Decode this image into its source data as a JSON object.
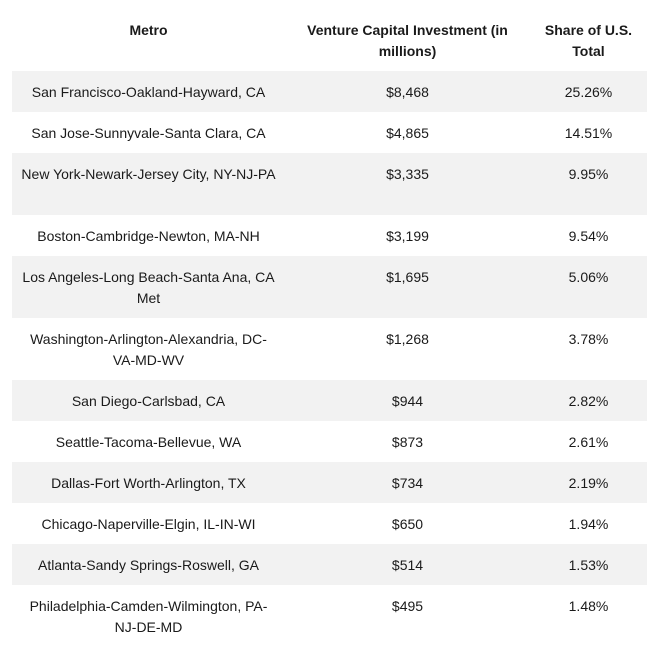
{
  "table": {
    "headers": {
      "metro": "Metro",
      "investment": "Venture Capital Investment (in millions)",
      "share": "Share of U.S. Total"
    },
    "rows": [
      {
        "metro": "San Francisco-Oakland-Hayward, CA",
        "investment": "$8,468",
        "share": "25.26%"
      },
      {
        "metro": "San Jose-Sunnyvale-Santa Clara, CA",
        "investment": "$4,865",
        "share": "14.51%"
      },
      {
        "metro": "New York-Newark-Jersey City, NY-NJ-PA",
        "investment": "$3,335",
        "share": "9.95%"
      },
      {
        "metro": "Boston-Cambridge-Newton, MA-NH",
        "investment": "$3,199",
        "share": "9.54%"
      },
      {
        "metro": "Los Angeles-Long Beach-Santa Ana, CA Met",
        "investment": "$1,695",
        "share": "5.06%"
      },
      {
        "metro": "Washington-Arlington-Alexandria, DC-VA-MD-WV",
        "investment": "$1,268",
        "share": "3.78%"
      },
      {
        "metro": "San Diego-Carlsbad, CA",
        "investment": "$944",
        "share": "2.82%"
      },
      {
        "metro": "Seattle-Tacoma-Bellevue, WA",
        "investment": "$873",
        "share": "2.61%"
      },
      {
        "metro": "Dallas-Fort Worth-Arlington, TX",
        "investment": "$734",
        "share": "2.19%"
      },
      {
        "metro": "Chicago-Naperville-Elgin, IL-IN-WI",
        "investment": "$650",
        "share": "1.94%"
      },
      {
        "metro": "Atlanta-Sandy Springs-Roswell, GA",
        "investment": "$514",
        "share": "1.53%"
      },
      {
        "metro": "Philadelphia-Camden-Wilmington, PA-NJ-DE-MD",
        "investment": "$495",
        "share": "1.48%"
      }
    ]
  }
}
